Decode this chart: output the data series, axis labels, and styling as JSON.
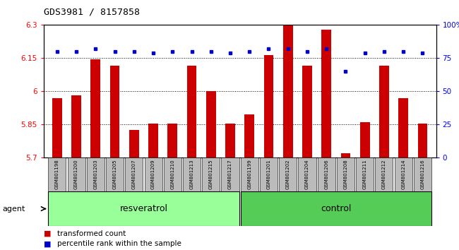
{
  "title": "GDS3981 / 8157858",
  "samples": [
    "GSM801198",
    "GSM801200",
    "GSM801203",
    "GSM801205",
    "GSM801207",
    "GSM801209",
    "GSM801210",
    "GSM801213",
    "GSM801215",
    "GSM801217",
    "GSM801199",
    "GSM801201",
    "GSM801202",
    "GSM801204",
    "GSM801206",
    "GSM801208",
    "GSM801211",
    "GSM801212",
    "GSM801214",
    "GSM801216"
  ],
  "transformed_count": [
    5.97,
    5.98,
    6.145,
    6.115,
    5.825,
    5.855,
    5.855,
    6.115,
    6.0,
    5.855,
    5.895,
    6.165,
    6.3,
    6.115,
    6.28,
    5.72,
    5.86,
    6.115,
    5.97,
    5.855
  ],
  "percentile_rank": [
    80,
    80,
    82,
    80,
    80,
    79,
    80,
    80,
    80,
    79,
    80,
    82,
    82,
    80,
    82,
    65,
    79,
    80,
    80,
    79
  ],
  "groups": [
    "resveratrol",
    "resveratrol",
    "resveratrol",
    "resveratrol",
    "resveratrol",
    "resveratrol",
    "resveratrol",
    "resveratrol",
    "resveratrol",
    "resveratrol",
    "control",
    "control",
    "control",
    "control",
    "control",
    "control",
    "control",
    "control",
    "control",
    "control"
  ],
  "n_resveratrol": 10,
  "ylim_left": [
    5.7,
    6.3
  ],
  "ylim_right": [
    0,
    100
  ],
  "yticks_left": [
    5.7,
    5.85,
    6.0,
    6.15,
    6.3
  ],
  "yticks_right": [
    0,
    25,
    50,
    75,
    100
  ],
  "ytick_labels_left": [
    "5.7",
    "5.85",
    "6",
    "6.15",
    "6.3"
  ],
  "ytick_labels_right": [
    "0",
    "25",
    "50",
    "75",
    "100%"
  ],
  "bar_color": "#cc0000",
  "dot_color": "#0000cc",
  "resveratrol_color": "#99ff99",
  "control_color": "#55cc55",
  "bg_color": "#bbbbbb",
  "bar_bottom": 5.7,
  "agent_label": "agent",
  "legend1": "transformed count",
  "legend2": "percentile rank within the sample"
}
